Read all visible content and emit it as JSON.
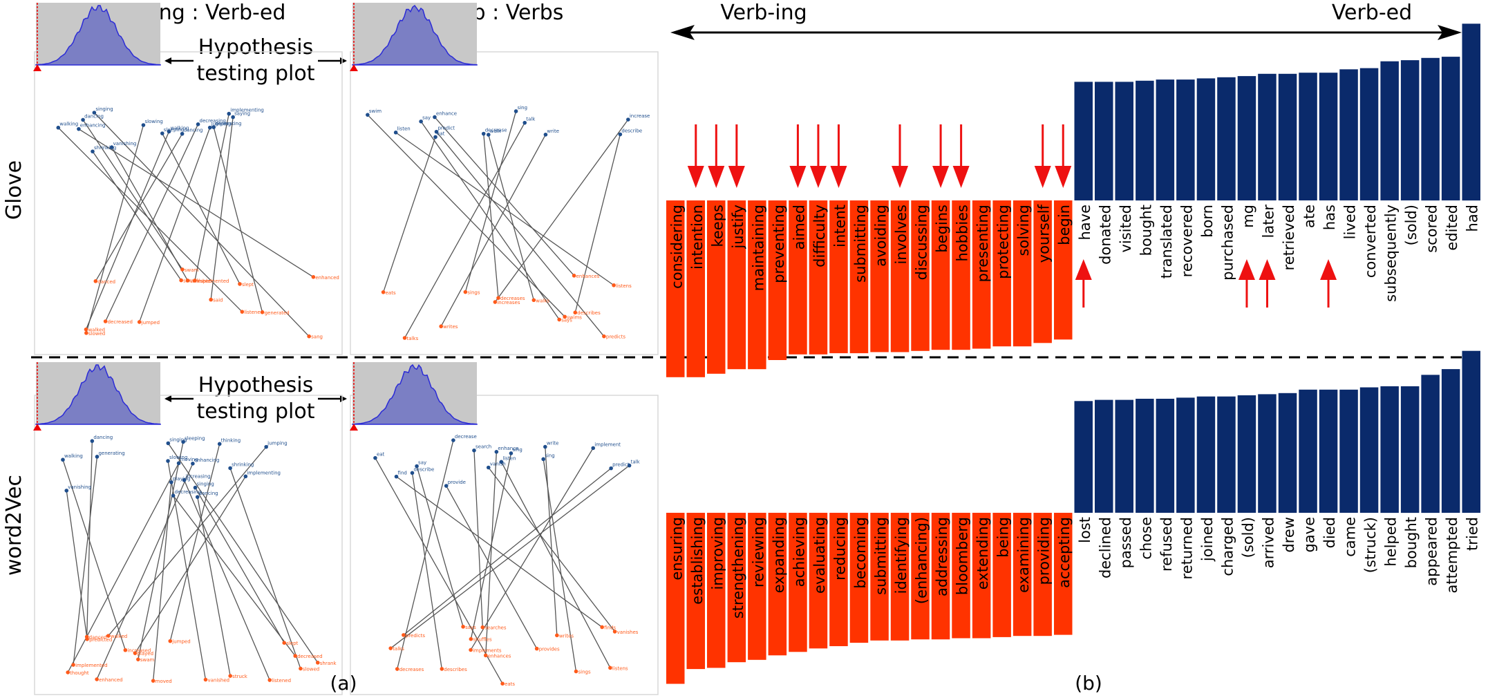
{
  "panel_a": {
    "col_titles": [
      "Verb-ing : Verb-ed",
      "Verb : Verbs"
    ],
    "row_labels": [
      "Glove",
      "word2Vec"
    ],
    "hypothesis_label": [
      "Hypothesis",
      "testing plot"
    ],
    "panel_label": "(a)",
    "colors": {
      "top_point": "#1f4e8c",
      "bottom_point": "#ff5a1a",
      "link": "#555555",
      "hist_fill": "#7b7fc4",
      "hist_bg": "#c8c8c8",
      "hist_line": "#2b2bd6",
      "marker": "#ee0000"
    },
    "word_scatter": [
      {
        "top_words": [
          "dancing",
          "walking",
          "jumping",
          "implementing",
          "saying",
          "singing",
          "enhancing",
          "sleeping",
          "shrinking",
          "decreasing",
          "slowing",
          "vanishing",
          "generating"
        ],
        "bottom_words": [
          "danced",
          "walked",
          "jumped",
          "implemented",
          "said",
          "sang",
          "enhanced",
          "slept",
          "shrank",
          "decreased",
          "slowed",
          "vanished",
          "generated",
          "swam",
          "listened"
        ]
      },
      {
        "top_words": [
          "increase",
          "decrease",
          "enhance",
          "predict",
          "describe",
          "sing",
          "say",
          "eat",
          "talk",
          "walk",
          "listen",
          "swim",
          "write"
        ],
        "bottom_words": [
          "increases",
          "decreases",
          "enhances",
          "predicts",
          "describes",
          "sings",
          "says",
          "eats",
          "talks",
          "walks",
          "listens",
          "swims",
          "writes"
        ]
      },
      {
        "top_words": [
          "dancing",
          "singing",
          "sleeping",
          "walking",
          "jumping",
          "thinking",
          "moving",
          "playing",
          "implementing",
          "vanishing",
          "generating",
          "slowing",
          "enhancing",
          "shrinking",
          "decreasing",
          "increasing"
        ],
        "bottom_words": [
          "danced",
          "slept",
          "swam",
          "increased",
          "walked",
          "jumped",
          "thought",
          "moved",
          "played",
          "predicted",
          "implemented",
          "vanished",
          "enhanced",
          "slowed",
          "decreased",
          "listened",
          "struck",
          "shrank"
        ]
      },
      {
        "top_words": [
          "sing",
          "listen",
          "eat",
          "write",
          "say",
          "talk",
          "describe",
          "provide",
          "implement",
          "predict",
          "enhance",
          "decrease",
          "vanish",
          "search",
          "find"
        ],
        "bottom_words": [
          "sings",
          "listens",
          "eats",
          "writes",
          "says",
          "talks",
          "describes",
          "provides",
          "implements",
          "predicts",
          "enhances",
          "decreases",
          "vanishes",
          "searches",
          "finds",
          "shuffles"
        ]
      }
    ]
  },
  "panel_b": {
    "direction_left": "Verb-ing",
    "direction_right": "Verb-ed",
    "panel_label": "(b)",
    "colors": {
      "ing_bar": "#ff3300",
      "ed_bar": "#0a2a6b",
      "arrow": "#ee1111"
    }
  },
  "chart_data": [
    {
      "type": "bar",
      "title": "",
      "xlabel": "",
      "ylabel": "",
      "categories": [
        "considering",
        "intention",
        "keeps",
        "justify",
        "maintaining",
        "preventing",
        "aimed",
        "difficulty",
        "intent",
        "submitting",
        "avoiding",
        "involves",
        "discussing",
        "begins",
        "hobbies",
        "presenting",
        "protecting",
        "solving",
        "yourself",
        "begin",
        "have",
        "donated",
        "visited",
        "bought",
        "translated",
        "recovered",
        "born",
        "purchased",
        "mg",
        "later",
        "retrieved",
        "ate",
        "has",
        "lived",
        "converted",
        "subsequently",
        "(sold)",
        "scored",
        "edited",
        "had"
      ],
      "values": [
        -1.55,
        -1.55,
        -1.52,
        -1.48,
        -1.48,
        -1.4,
        -1.35,
        -1.35,
        -1.34,
        -1.34,
        -1.33,
        -1.33,
        -1.32,
        -1.31,
        -1.31,
        -1.3,
        -1.28,
        -1.28,
        -1.25,
        -1.22,
        1.04,
        1.04,
        1.04,
        1.05,
        1.06,
        1.06,
        1.07,
        1.08,
        1.09,
        1.11,
        1.11,
        1.12,
        1.12,
        1.15,
        1.16,
        1.22,
        1.23,
        1.25,
        1.26,
        1.55
      ],
      "arrows_above": [
        "intention",
        "keeps",
        "justify",
        "aimed",
        "difficulty",
        "intent",
        "involves",
        "begins",
        "hobbies",
        "yourself",
        "begin"
      ],
      "arrows_below": [
        "have",
        "mg",
        "later",
        "has"
      ],
      "ylim": [
        -1.6,
        1.6
      ]
    },
    {
      "type": "bar",
      "title": "",
      "xlabel": "",
      "ylabel": "",
      "categories": [
        "ensuring",
        "establishing",
        "improving",
        "strengthening",
        "reviewing",
        "expanding",
        "achieving",
        "evaluating",
        "reducing",
        "becoming",
        "submitting",
        "identifying",
        "(enhancing)",
        "addressing",
        "bloomberg",
        "extending",
        "being",
        "examining",
        "providing",
        "accepting",
        "lost",
        "declined",
        "passed",
        "chose",
        "refused",
        "returned",
        "joined",
        "charged",
        "(sold)",
        "arrived",
        "drew",
        "gave",
        "died",
        "came",
        "(struck)",
        "helped",
        "bought",
        "appeared",
        "attempted",
        "tried"
      ],
      "values": [
        -1.5,
        -1.37,
        -1.36,
        -1.31,
        -1.29,
        -1.25,
        -1.22,
        -1.19,
        -1.17,
        -1.14,
        -1.12,
        -1.12,
        -1.11,
        -1.11,
        -1.1,
        -1.1,
        -1.09,
        -1.08,
        -1.08,
        -1.07,
        0.98,
        0.99,
        0.99,
        1.0,
        1.0,
        1.01,
        1.02,
        1.02,
        1.03,
        1.04,
        1.05,
        1.08,
        1.08,
        1.08,
        1.1,
        1.11,
        1.11,
        1.21,
        1.26,
        1.42
      ],
      "ylim": [
        -1.6,
        1.6
      ]
    }
  ]
}
